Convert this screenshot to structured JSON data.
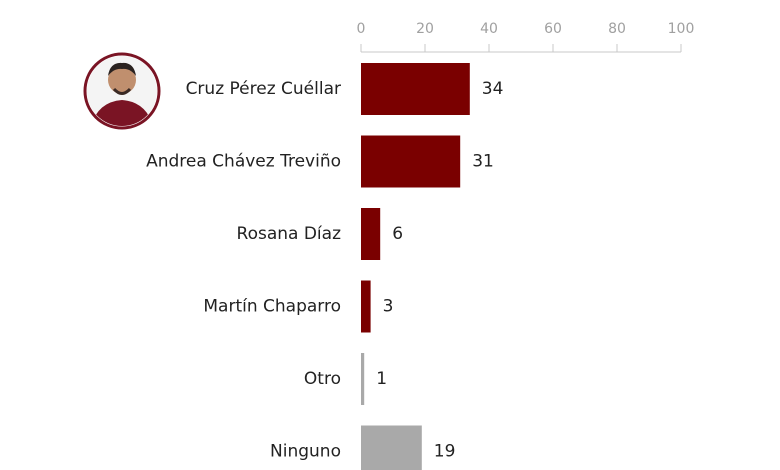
{
  "chart_data": {
    "type": "bar",
    "orientation": "horizontal",
    "categories": [
      "Cruz Pérez Cuéllar",
      "Andrea Chávez Treviño",
      "Rosana Díaz",
      "Martín Chaparro",
      "Otro",
      "Ninguno"
    ],
    "values": [
      34,
      31,
      6,
      3,
      1,
      19
    ],
    "colors": [
      "#7a0000",
      "#7a0000",
      "#7a0000",
      "#7a0000",
      "#a9a9a9",
      "#a9a9a9"
    ],
    "xlim": [
      0,
      100
    ],
    "xticks": [
      0,
      20,
      40,
      60,
      80,
      100
    ]
  }
}
